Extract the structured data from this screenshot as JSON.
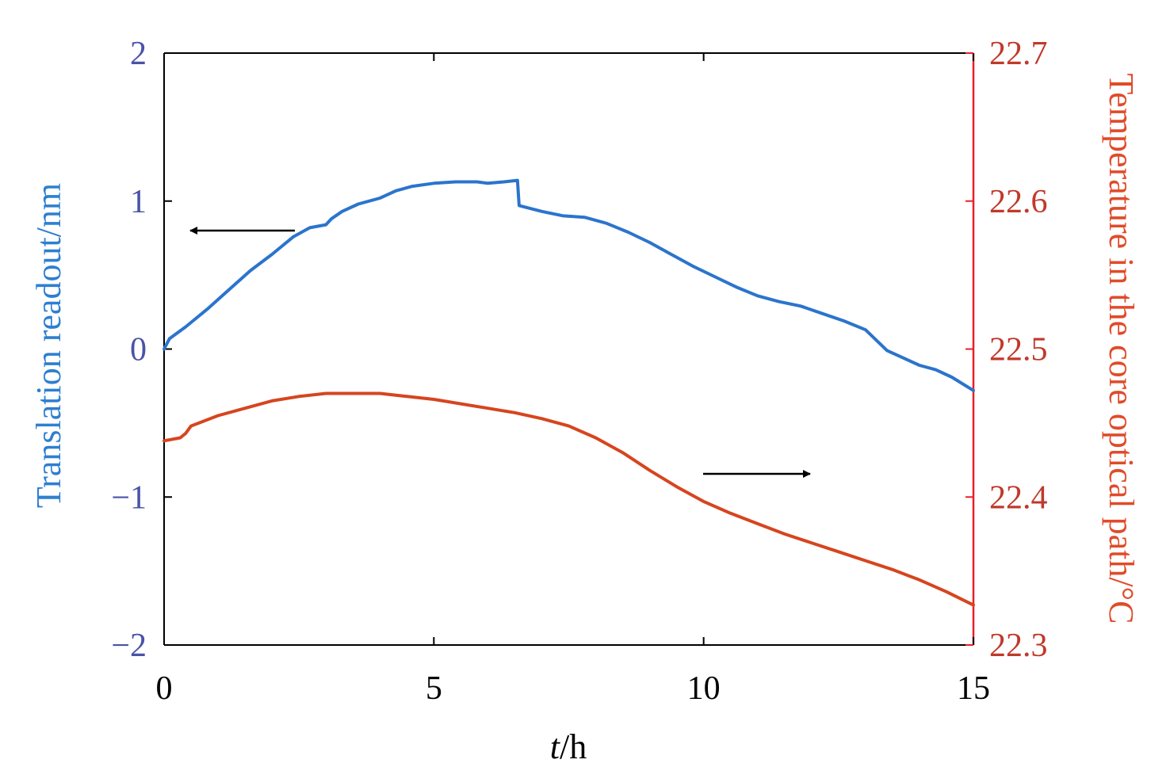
{
  "chart_data": {
    "type": "line",
    "title": "",
    "xlabel": {
      "italic": "t",
      "rest": "/h"
    },
    "ylabel_left": "Translation readout/nm",
    "ylabel_right": "Temperature in the core optical path/°C",
    "xlim": [
      0,
      15
    ],
    "ylim_left": [
      -2,
      2
    ],
    "ylim_right": [
      22.3,
      22.7
    ],
    "x_ticks": [
      {
        "value": 0,
        "label": "0"
      },
      {
        "value": 5,
        "label": "5"
      },
      {
        "value": 10,
        "label": "10"
      },
      {
        "value": 15,
        "label": "15"
      }
    ],
    "y_ticks_left": [
      {
        "value": 2,
        "label": "2"
      },
      {
        "value": 1,
        "label": "1"
      },
      {
        "value": 0,
        "label": "0"
      },
      {
        "value": -1,
        "label": "−1"
      },
      {
        "value": -2,
        "label": "−2"
      }
    ],
    "y_ticks_right": [
      {
        "value": 22.7,
        "label": "22.7"
      },
      {
        "value": 22.6,
        "label": "22.6"
      },
      {
        "value": 22.5,
        "label": "22.5"
      },
      {
        "value": 22.4,
        "label": "22.4"
      },
      {
        "value": 22.3,
        "label": "22.3"
      }
    ],
    "grid": false,
    "colors": {
      "left_axis_text": "#4a52a8",
      "right_axis_text": "#c0392b",
      "right_axis_line": "#e8202a",
      "left_title": "#2e7fd0",
      "right_title": "#e04b2a",
      "translation_series": "#2b74cc",
      "temperature_series": "#d6451f",
      "frame": "#000000"
    },
    "series": [
      {
        "axis": "left",
        "color": "#2b74cc",
        "x": [
          0,
          0.1,
          0.4,
          0.8,
          1.2,
          1.6,
          2.0,
          2.4,
          2.7,
          3.0,
          3.1,
          3.3,
          3.6,
          4.0,
          4.3,
          4.6,
          5.0,
          5.4,
          5.8,
          6.0,
          6.3,
          6.55,
          6.58,
          7.0,
          7.4,
          7.8,
          8.2,
          8.6,
          9.0,
          9.4,
          9.8,
          10.2,
          10.6,
          11.0,
          11.4,
          11.8,
          12.2,
          12.6,
          13.0,
          13.2,
          13.4,
          13.7,
          14.0,
          14.3,
          14.6,
          15.0
        ],
        "y": [
          0.0,
          0.07,
          0.15,
          0.27,
          0.4,
          0.53,
          0.64,
          0.76,
          0.82,
          0.84,
          0.88,
          0.93,
          0.98,
          1.02,
          1.07,
          1.1,
          1.12,
          1.13,
          1.13,
          1.12,
          1.13,
          1.14,
          0.97,
          0.93,
          0.9,
          0.89,
          0.85,
          0.79,
          0.72,
          0.64,
          0.56,
          0.49,
          0.42,
          0.36,
          0.32,
          0.29,
          0.24,
          0.19,
          0.13,
          0.06,
          -0.01,
          -0.06,
          -0.11,
          -0.14,
          -0.19,
          -0.28
        ]
      },
      {
        "axis": "right",
        "color": "#d6451f",
        "x": [
          0,
          0.3,
          0.4,
          0.5,
          1.0,
          1.5,
          2.0,
          2.5,
          3.0,
          3.5,
          4.0,
          4.5,
          5.0,
          5.5,
          6.0,
          6.5,
          7.0,
          7.5,
          8.0,
          8.5,
          9.0,
          9.5,
          10.0,
          10.5,
          11.0,
          11.5,
          12.0,
          12.5,
          13.0,
          13.5,
          14.0,
          14.5,
          15.0
        ],
        "y": [
          22.438,
          22.44,
          22.443,
          22.448,
          22.455,
          22.46,
          22.465,
          22.468,
          22.47,
          22.47,
          22.47,
          22.468,
          22.466,
          22.463,
          22.46,
          22.457,
          22.453,
          22.448,
          22.44,
          22.43,
          22.418,
          22.407,
          22.397,
          22.389,
          22.382,
          22.375,
          22.369,
          22.363,
          22.357,
          22.351,
          22.344,
          22.336,
          22.327
        ]
      }
    ],
    "annotations": [
      {
        "kind": "arrow",
        "points_to": "left",
        "near_series": "translation"
      },
      {
        "kind": "arrow",
        "points_to": "right",
        "near_series": "temperature"
      }
    ]
  }
}
